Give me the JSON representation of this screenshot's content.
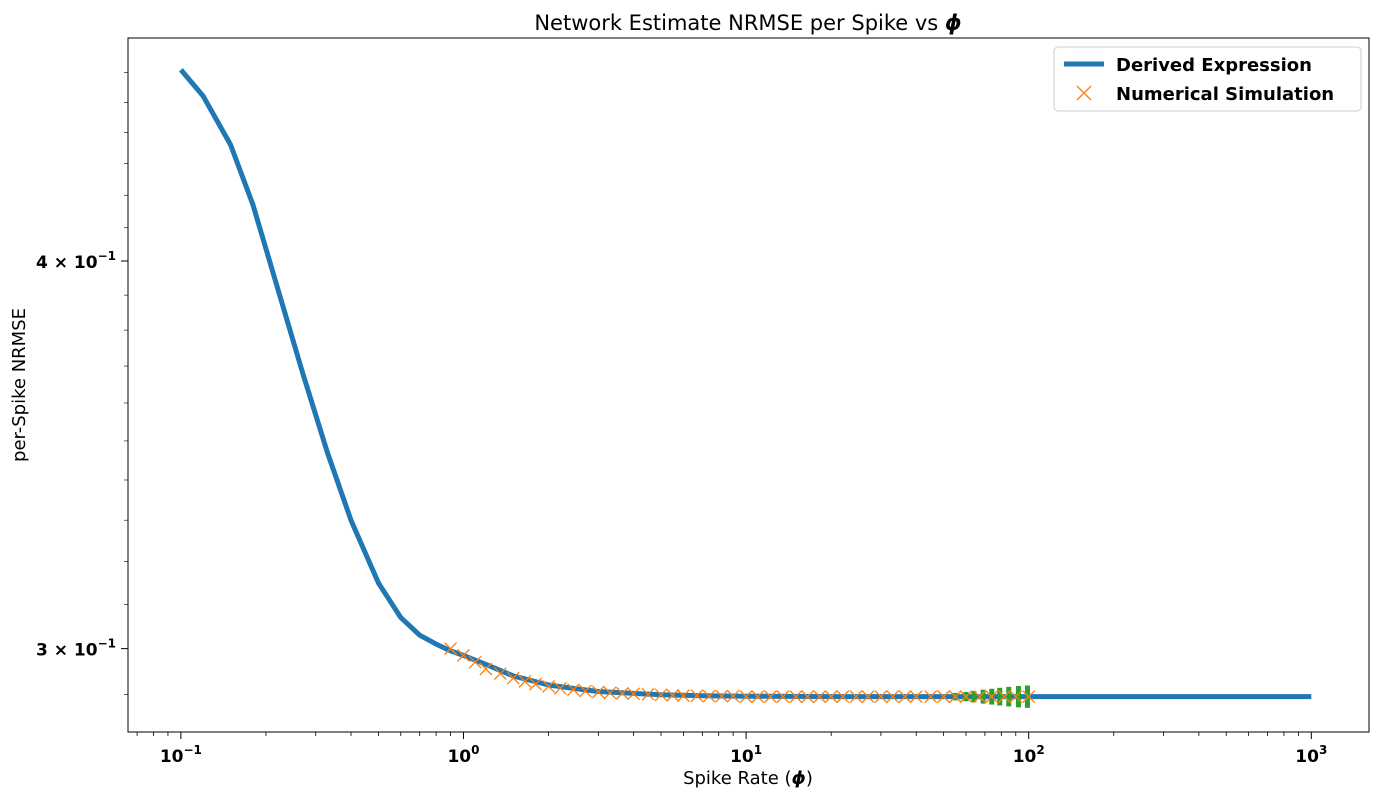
{
  "chart_data": {
    "type": "line",
    "title_prefix": "Network Estimate NRMSE per Spike vs ",
    "title_symbol": "ϕ",
    "xlabel_prefix": "Spike Rate (",
    "xlabel_symbol": "ϕ",
    "xlabel_suffix": ")",
    "ylabel": "per-Spike NRMSE",
    "x_scale": "log",
    "y_scale": "log",
    "xlim": [
      0.065,
      1600
    ],
    "ylim": [
      0.282,
      0.472
    ],
    "x_ticks": [
      {
        "value": 0.1,
        "base": "10",
        "exp": "−1"
      },
      {
        "value": 1,
        "base": "10",
        "exp": "0"
      },
      {
        "value": 10,
        "base": "10",
        "exp": "1"
      },
      {
        "value": 100,
        "base": "10",
        "exp": "2"
      },
      {
        "value": 1000,
        "base": "10",
        "exp": "3"
      }
    ],
    "y_ticks": [
      {
        "value": 0.4,
        "mantissa": "4 × 10",
        "exp": "−1"
      },
      {
        "value": 0.3,
        "mantissa": "3 × 10",
        "exp": "−1"
      }
    ],
    "grid": false,
    "legend_position": "top-right",
    "colors": {
      "derived": "#1f77b4",
      "simulation": "#ff7f0e",
      "error_bars": "#2ca02c"
    },
    "series": [
      {
        "name": "Derived Expression",
        "style": "line",
        "x": [
          0.1,
          0.12,
          0.15,
          0.18,
          0.22,
          0.27,
          0.33,
          0.4,
          0.5,
          0.6,
          0.7,
          0.8,
          0.9,
          1.0,
          1.2,
          1.5,
          2,
          2.5,
          3,
          4,
          5,
          7,
          10,
          20,
          50,
          100,
          1000
        ],
        "y": [
          0.461,
          0.452,
          0.436,
          0.417,
          0.392,
          0.368,
          0.347,
          0.33,
          0.315,
          0.307,
          0.303,
          0.301,
          0.2995,
          0.2985,
          0.2965,
          0.294,
          0.292,
          0.2912,
          0.2906,
          0.2902,
          0.2899,
          0.2897,
          0.2896,
          0.2895,
          0.2895,
          0.2895,
          0.2895
        ]
      },
      {
        "name": "Numerical Simulation",
        "style": "markers",
        "marker": "x",
        "x": [
          0.9,
          1.0,
          1.1,
          1.2,
          1.35,
          1.5,
          1.65,
          1.8,
          2.0,
          2.2,
          2.45,
          2.7,
          3.0,
          3.3,
          3.65,
          4.0,
          4.5,
          5.0,
          5.5,
          6.0,
          6.7,
          7.4,
          8.2,
          9.0,
          10,
          11,
          12.2,
          13.5,
          15,
          16.5,
          18.2,
          20,
          22,
          24.5,
          27,
          30,
          33,
          36.5,
          40,
          45,
          50,
          55,
          60,
          67,
          74,
          82,
          90,
          100
        ],
        "y": [
          0.3,
          0.2985,
          0.297,
          0.2955,
          0.2945,
          0.2935,
          0.2928,
          0.2922,
          0.2917,
          0.2913,
          0.291,
          0.2907,
          0.2905,
          0.2903,
          0.2902,
          0.2901,
          0.29,
          0.2899,
          0.2898,
          0.2897,
          0.2897,
          0.2896,
          0.2896,
          0.2896,
          0.2895,
          0.2895,
          0.2895,
          0.2895,
          0.2895,
          0.2895,
          0.2895,
          0.2895,
          0.2895,
          0.2895,
          0.2895,
          0.2895,
          0.2895,
          0.2895,
          0.2895,
          0.2895,
          0.2895,
          0.2895,
          0.2895,
          0.2895,
          0.2895,
          0.2895,
          0.2895,
          0.2895
        ]
      },
      {
        "name": "error-bars",
        "style": "errorbar",
        "x": [
          55,
          60,
          64,
          69,
          74,
          79,
          85,
          92,
          99
        ],
        "y": [
          0.2895,
          0.2895,
          0.2895,
          0.2895,
          0.2895,
          0.2895,
          0.2895,
          0.2895,
          0.2895
        ],
        "err": [
          0.0008,
          0.001,
          0.0012,
          0.0015,
          0.0017,
          0.0019,
          0.0021,
          0.0023,
          0.0024
        ]
      }
    ]
  }
}
